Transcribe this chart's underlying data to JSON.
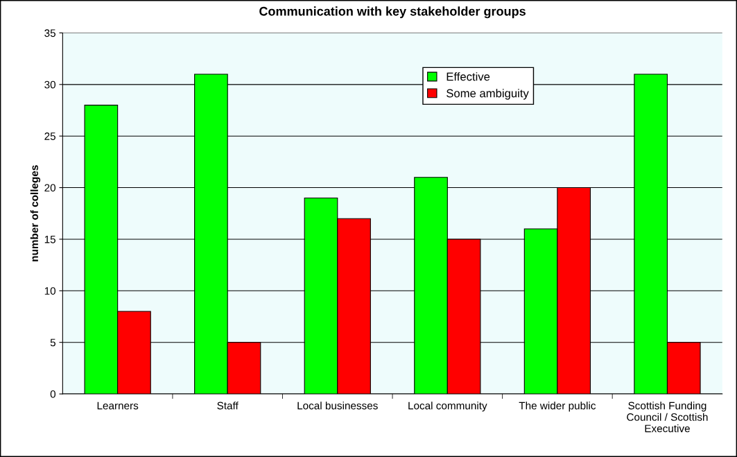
{
  "chart_data": {
    "type": "bar",
    "title": "Communication with key stakeholder groups",
    "ylabel": "number of colleges",
    "categories": [
      "Learners",
      "Staff",
      "Local businesses",
      "Local community",
      "The wider public",
      "Scottish Funding Council / Scottish Executive"
    ],
    "series": [
      {
        "name": "Effective",
        "color": "#00ff00",
        "values": [
          28,
          31,
          19,
          21,
          16,
          31
        ]
      },
      {
        "name": "Some ambiguity",
        "color": "#ff0000",
        "values": [
          8,
          5,
          17,
          15,
          20,
          5
        ]
      }
    ],
    "ylim": [
      0,
      35
    ],
    "yticks": [
      0,
      5,
      10,
      15,
      20,
      25,
      30,
      35
    ],
    "grid": "y",
    "legend": "top"
  }
}
